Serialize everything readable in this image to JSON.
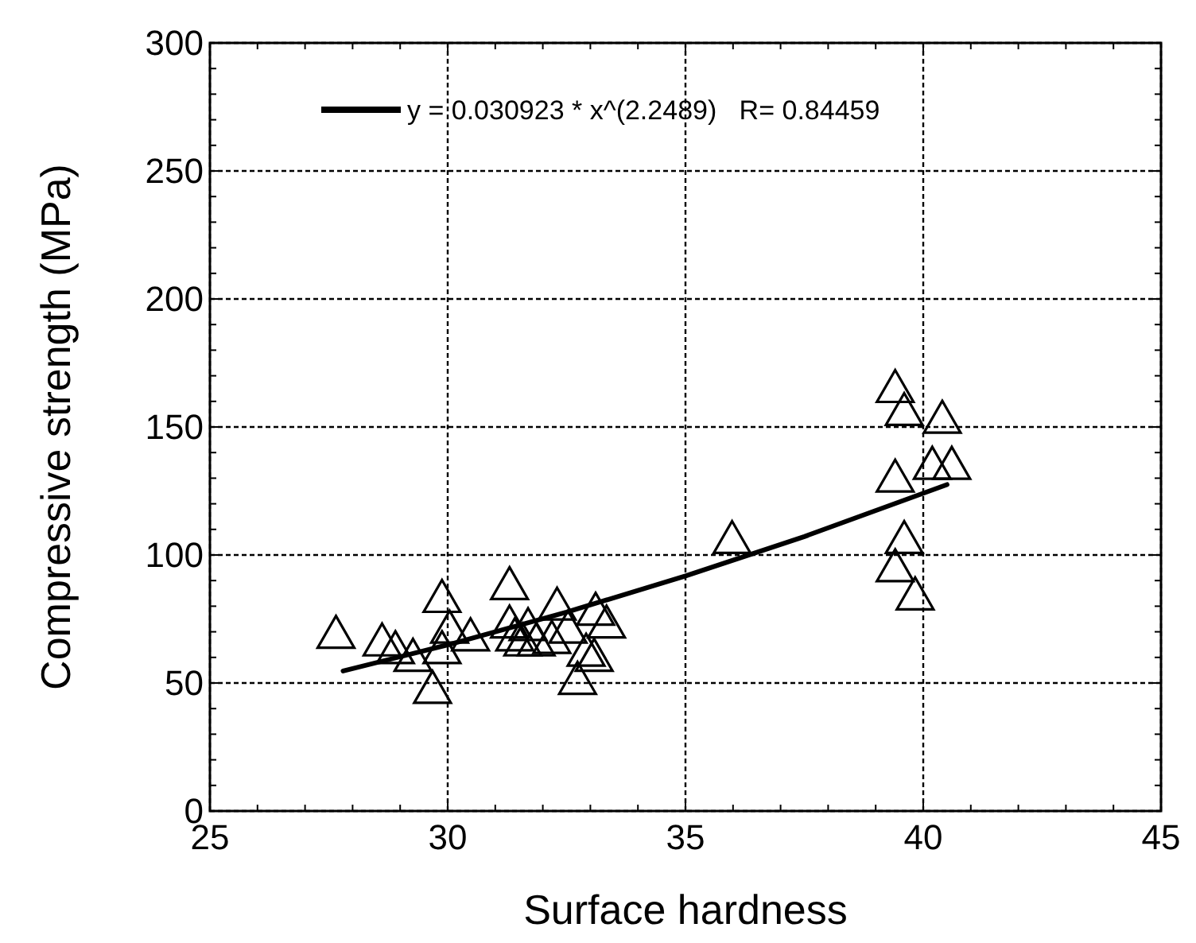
{
  "chart_data": {
    "type": "scatter",
    "xlabel": "Surface hardness",
    "ylabel": "Compressive strength (MPa)",
    "xlim": [
      25,
      45
    ],
    "xticks": [
      25,
      30,
      35,
      40,
      45
    ],
    "ylim": [
      0,
      300
    ],
    "yticks": [
      0,
      50,
      100,
      150,
      200,
      250,
      300
    ],
    "grid": true,
    "legend": "top",
    "marker": "triangle",
    "series": [
      {
        "color": "#000000",
        "x": [
          27.65,
          28.62,
          28.9,
          29.27,
          29.68,
          29.88,
          29.88,
          30.04,
          30.48,
          31.3,
          31.3,
          31.41,
          31.69,
          31.58,
          31.86,
          32.3,
          32.19,
          32.53,
          32.73,
          32.91,
          33.08,
          33.11,
          33.34,
          35.98,
          39.41,
          39.6,
          40.4,
          39.41,
          40.19,
          40.6,
          39.6,
          39.41,
          39.83
        ],
        "values": [
          70,
          67,
          64,
          61,
          48.5,
          84,
          64,
          72,
          69,
          89,
          74,
          69,
          73,
          67,
          67,
          81,
          68,
          72,
          52,
          63,
          61,
          79,
          74,
          107,
          166,
          157,
          154,
          131,
          136,
          136,
          107,
          96,
          85
        ]
      },
      {
        "type": "line",
        "name": "y = 0.030923 * x^(2.2489)   R= 0.84459",
        "color": "#000000",
        "marker": "none",
        "line_style": "solid",
        "x": [
          27.8,
          30,
          32.5,
          35,
          37.5,
          40.5
        ],
        "values": [
          54.7,
          64.9,
          77.7,
          91.8,
          107.2,
          127.5
        ]
      }
    ]
  }
}
